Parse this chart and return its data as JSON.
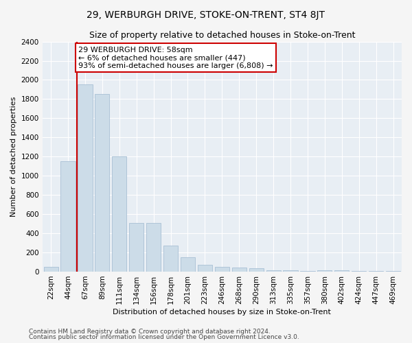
{
  "title": "29, WERBURGH DRIVE, STOKE-ON-TRENT, ST4 8JT",
  "subtitle": "Size of property relative to detached houses in Stoke-on-Trent",
  "xlabel": "Distribution of detached houses by size in Stoke-on-Trent",
  "ylabel": "Number of detached properties",
  "categories": [
    "22sqm",
    "44sqm",
    "67sqm",
    "89sqm",
    "111sqm",
    "134sqm",
    "156sqm",
    "178sqm",
    "201sqm",
    "223sqm",
    "246sqm",
    "268sqm",
    "290sqm",
    "313sqm",
    "335sqm",
    "357sqm",
    "380sqm",
    "402sqm",
    "424sqm",
    "447sqm",
    "469sqm"
  ],
  "values": [
    50,
    1150,
    1950,
    1850,
    1200,
    510,
    510,
    270,
    150,
    75,
    48,
    45,
    35,
    15,
    15,
    10,
    15,
    15,
    5,
    5,
    5
  ],
  "bar_color": "#ccdce8",
  "bar_edge_color": "#a8c0d4",
  "vline_color": "#cc0000",
  "annotation_text": "29 WERBURGH DRIVE: 58sqm\n← 6% of detached houses are smaller (447)\n93% of semi-detached houses are larger (6,808) →",
  "annotation_box_facecolor": "#ffffff",
  "annotation_box_edgecolor": "#cc0000",
  "ylim": [
    0,
    2400
  ],
  "yticks": [
    0,
    200,
    400,
    600,
    800,
    1000,
    1200,
    1400,
    1600,
    1800,
    2000,
    2200,
    2400
  ],
  "footnote1": "Contains HM Land Registry data © Crown copyright and database right 2024.",
  "footnote2": "Contains public sector information licensed under the Open Government Licence v3.0.",
  "plot_bg_color": "#e8eef4",
  "fig_bg_color": "#f5f5f5",
  "grid_color": "#ffffff",
  "title_fontsize": 10,
  "subtitle_fontsize": 9,
  "axis_label_fontsize": 8,
  "tick_fontsize": 7.5,
  "footnote_fontsize": 6.5,
  "annotation_fontsize": 8
}
